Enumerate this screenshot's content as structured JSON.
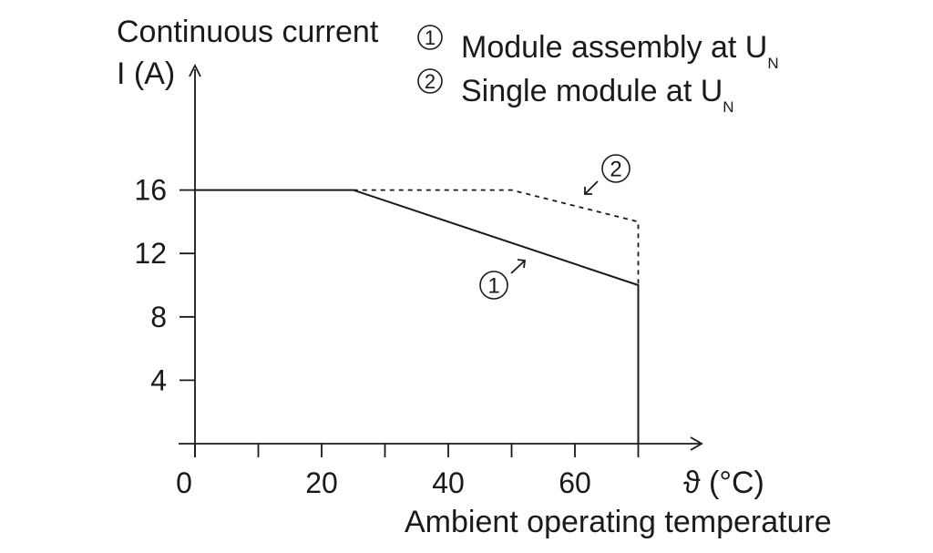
{
  "chart_data": {
    "type": "line",
    "ylabel_line1": "Continuous current",
    "ylabel_line2": "I (A)",
    "xlabel": "Ambient operating temperature",
    "x_unit_label": "ϑ (°C)",
    "xlim": [
      0,
      80
    ],
    "ylim": [
      0,
      18
    ],
    "x_ticks": [
      0,
      10,
      20,
      30,
      40,
      50,
      60,
      70
    ],
    "x_tick_labels": [
      "0",
      "",
      "20",
      "",
      "40",
      "",
      "60",
      ""
    ],
    "y_ticks": [
      4,
      8,
      12,
      16
    ],
    "y_tick_labels": [
      "4",
      "8",
      "12",
      "16"
    ],
    "grid": false,
    "legend": [
      {
        "marker": "①",
        "text": "Module assembly at U",
        "sub": "N"
      },
      {
        "marker": "②",
        "text": "Single module at U",
        "sub": "N"
      }
    ],
    "series": [
      {
        "marker": "①",
        "style": "solid",
        "x": [
          0,
          25,
          70,
          70
        ],
        "y": [
          16,
          16,
          10,
          0
        ]
      },
      {
        "marker": "②",
        "style": "dashed",
        "x": [
          25,
          50,
          70,
          70
        ],
        "y": [
          16,
          16,
          14,
          10
        ]
      }
    ],
    "annotations": [
      {
        "marker": "①",
        "series": 0
      },
      {
        "marker": "②",
        "series": 1
      }
    ]
  }
}
